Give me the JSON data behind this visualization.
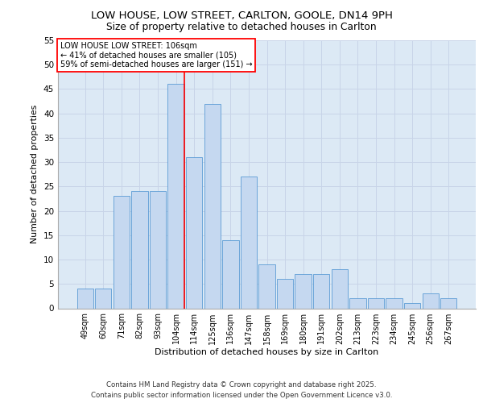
{
  "title1": "LOW HOUSE, LOW STREET, CARLTON, GOOLE, DN14 9PH",
  "title2": "Size of property relative to detached houses in Carlton",
  "xlabel": "Distribution of detached houses by size in Carlton",
  "ylabel": "Number of detached properties",
  "categories": [
    "49sqm",
    "60sqm",
    "71sqm",
    "82sqm",
    "93sqm",
    "104sqm",
    "114sqm",
    "125sqm",
    "136sqm",
    "147sqm",
    "158sqm",
    "169sqm",
    "180sqm",
    "191sqm",
    "202sqm",
    "213sqm",
    "223sqm",
    "234sqm",
    "245sqm",
    "256sqm",
    "267sqm"
  ],
  "values": [
    4,
    4,
    23,
    24,
    24,
    46,
    31,
    42,
    14,
    27,
    9,
    6,
    7,
    7,
    8,
    2,
    2,
    2,
    1,
    3,
    2
  ],
  "bar_color": "#c5d8f0",
  "bar_edge_color": "#5b9bd5",
  "annotation_text": "LOW HOUSE LOW STREET: 106sqm\n← 41% of detached houses are smaller (105)\n59% of semi-detached houses are larger (151) →",
  "grid_color": "#c8d4e8",
  "background_color": "#dce9f5",
  "ylim": [
    0,
    55
  ],
  "yticks": [
    0,
    5,
    10,
    15,
    20,
    25,
    30,
    35,
    40,
    45,
    50,
    55
  ],
  "footer1": "Contains HM Land Registry data © Crown copyright and database right 2025.",
  "footer2": "Contains public sector information licensed under the Open Government Licence v3.0."
}
